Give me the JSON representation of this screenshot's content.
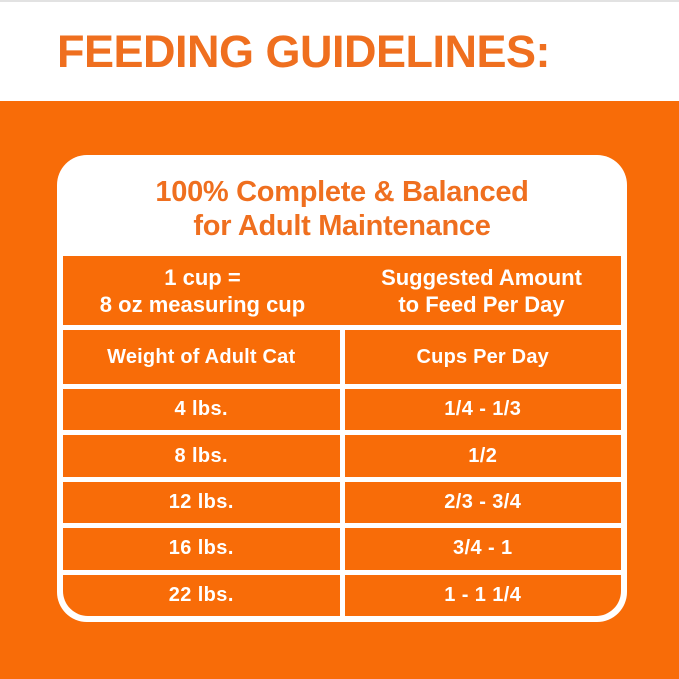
{
  "title": "FEEDING GUIDELINES:",
  "colors": {
    "orange_background": "#F86C08",
    "orange_text": "#EF6F1F",
    "divider_white": "#FFFFFF"
  },
  "panel": {
    "heading": {
      "line1": "100% Complete & Balanced",
      "line2": "for Adult Maintenance"
    },
    "cup_info": {
      "left": {
        "line1": "1 cup =",
        "line2": "8 oz measuring cup"
      },
      "right": {
        "line1": "Suggested Amount",
        "line2": "to Feed Per Day"
      }
    },
    "table": {
      "columns": [
        {
          "label": "Weight of Adult Cat"
        },
        {
          "label": "Cups Per Day"
        }
      ],
      "rows": [
        {
          "weight": "4 lbs.",
          "cups": "1/4 - 1/3"
        },
        {
          "weight": "8 lbs.",
          "cups": "1/2"
        },
        {
          "weight": "12 lbs.",
          "cups": "2/3 - 3/4"
        },
        {
          "weight": "16 lbs.",
          "cups": "3/4 - 1"
        },
        {
          "weight": "22 lbs.",
          "cups": "1 - 1 1/4"
        }
      ]
    }
  }
}
